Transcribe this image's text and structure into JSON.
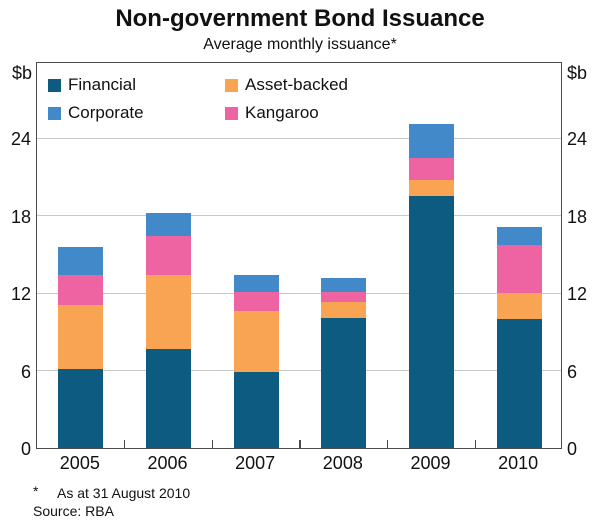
{
  "header": {
    "title": "Non-government Bond Issuance",
    "subtitle": "Average monthly issuance*"
  },
  "axis": {
    "unit_left": "$b",
    "unit_right": "$b"
  },
  "legend": {
    "items": [
      {
        "label": "Financial",
        "series": "Financial",
        "row": 0,
        "col": 0
      },
      {
        "label": "Asset-backed",
        "series": "Asset-backed",
        "row": 0,
        "col": 1
      },
      {
        "label": "Corporate",
        "series": "Corporate",
        "row": 1,
        "col": 0
      },
      {
        "label": "Kangaroo",
        "series": "Kangaroo",
        "row": 1,
        "col": 1
      }
    ]
  },
  "colors": {
    "financial": "#0d5b80",
    "corporate": "#4189c8",
    "asset_backed": "#f8a452",
    "kangaroo": "#ee64a2",
    "gridline": "#c9c9c9",
    "frame": "#4c4c4e"
  },
  "chart_data": {
    "type": "bar",
    "stacked": true,
    "title": "Non-government Bond Issuance",
    "subtitle": "Average monthly issuance*",
    "ylabel": "$b",
    "ylim": [
      0,
      30
    ],
    "yticks": [
      0,
      6,
      12,
      18,
      24
    ],
    "grid": true,
    "legend_position": "top-left-inside",
    "categories": [
      "2005",
      "2006",
      "2007",
      "2008",
      "2009",
      "2010"
    ],
    "series": [
      {
        "name": "Financial",
        "color": "#0d5b80",
        "values": [
          6.1,
          7.7,
          5.9,
          10.1,
          19.5,
          10.0
        ]
      },
      {
        "name": "Asset-backed",
        "color": "#f8a452",
        "values": [
          5.0,
          5.7,
          4.7,
          1.2,
          1.3,
          2.0
        ]
      },
      {
        "name": "Kangaroo",
        "color": "#ee64a2",
        "values": [
          2.3,
          3.0,
          1.5,
          0.8,
          1.7,
          3.7
        ]
      },
      {
        "name": "Corporate",
        "color": "#4189c8",
        "values": [
          2.2,
          1.8,
          1.3,
          1.1,
          2.6,
          1.4
        ]
      }
    ],
    "totals": [
      15.6,
      18.2,
      13.4,
      13.2,
      25.1,
      17.1
    ]
  },
  "footnote": {
    "marker": "*",
    "text": "As at 31 August 2010",
    "source": "Source: RBA"
  }
}
